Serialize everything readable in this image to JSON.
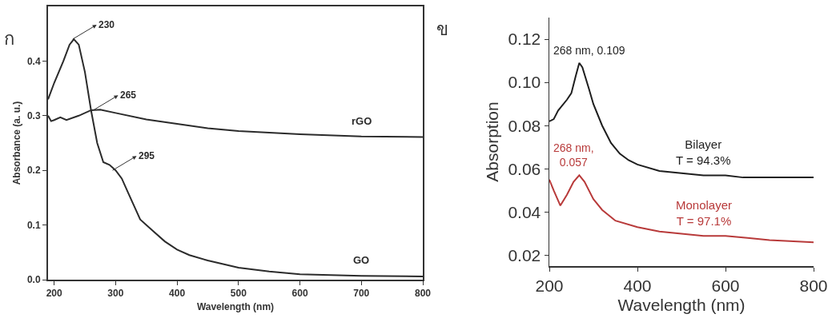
{
  "chart_data": [
    {
      "type": "line",
      "title": "ก",
      "xlabel": "Wavelength (nm)",
      "ylabel": "Absorbance (a. u.)",
      "xlim": [
        190,
        800
      ],
      "ylim": [
        0,
        0.5
      ],
      "xticks": [
        200,
        300,
        400,
        500,
        600,
        700,
        800
      ],
      "yticks": [
        {
          "value": 0,
          "label": "0.0"
        },
        0.1,
        0.2,
        0.3,
        0.4
      ],
      "grid": false,
      "legend": false,
      "series": [
        {
          "name": "rGO",
          "color": "#2b2b2b",
          "x": [
            190,
            195,
            200,
            210,
            220,
            240,
            260,
            275,
            300,
            350,
            400,
            450,
            500,
            600,
            700,
            800
          ],
          "values": [
            0.3,
            0.29,
            0.292,
            0.297,
            0.292,
            0.3,
            0.31,
            0.311,
            0.305,
            0.293,
            0.285,
            0.277,
            0.272,
            0.266,
            0.262,
            0.261
          ]
        },
        {
          "name": "GO",
          "color": "#2b2b2b",
          "x": [
            190,
            200,
            215,
            225,
            232,
            240,
            250,
            260,
            270,
            280,
            290,
            300,
            310,
            320,
            330,
            340,
            360,
            380,
            400,
            420,
            450,
            500,
            550,
            600,
            700,
            800
          ],
          "values": [
            0.33,
            0.36,
            0.4,
            0.43,
            0.44,
            0.43,
            0.38,
            0.31,
            0.25,
            0.215,
            0.21,
            0.2,
            0.185,
            0.16,
            0.135,
            0.11,
            0.09,
            0.07,
            0.055,
            0.045,
            0.035,
            0.022,
            0.015,
            0.01,
            0.007,
            0.006
          ]
        }
      ],
      "annotations": [
        {
          "text": "230",
          "x": 230,
          "y": 0.44
        },
        {
          "text": "265",
          "x": 265,
          "y": 0.311
        },
        {
          "text": "295",
          "x": 295,
          "y": 0.2
        }
      ]
    },
    {
      "type": "line",
      "title": "ข",
      "xlabel": "Wavelength (nm)",
      "ylabel": "Absorption",
      "xlim": [
        200,
        800
      ],
      "ylim": [
        0.015,
        0.13
      ],
      "xticks": [
        200,
        400,
        600,
        800
      ],
      "yticks": [
        0.02,
        0.04,
        0.06,
        0.08,
        {
          "value": 0.1,
          "label": "0.10"
        },
        0.12
      ],
      "grid": false,
      "legend": false,
      "series": [
        {
          "name": "Bilayer\nT = 94.3%",
          "color": "#1e1e1e",
          "x": [
            200,
            210,
            220,
            240,
            250,
            260,
            268,
            275,
            290,
            300,
            320,
            340,
            360,
            380,
            400,
            450,
            500,
            550,
            600,
            640,
            700,
            800
          ],
          "values": [
            0.082,
            0.083,
            0.087,
            0.092,
            0.095,
            0.103,
            0.109,
            0.107,
            0.097,
            0.09,
            0.08,
            0.072,
            0.067,
            0.064,
            0.062,
            0.059,
            0.058,
            0.057,
            0.057,
            0.056,
            0.056,
            0.056
          ]
        },
        {
          "name": "Monolayer\nT = 97.1%",
          "color": "#b83a3a",
          "x": [
            200,
            210,
            225,
            240,
            255,
            268,
            280,
            300,
            320,
            350,
            400,
            450,
            500,
            550,
            600,
            650,
            700,
            800
          ],
          "values": [
            0.055,
            0.05,
            0.043,
            0.048,
            0.054,
            0.057,
            0.054,
            0.046,
            0.041,
            0.036,
            0.033,
            0.031,
            0.03,
            0.029,
            0.029,
            0.028,
            0.027,
            0.026
          ]
        }
      ],
      "annotations": [
        {
          "text": "268 nm, 0.109",
          "x": 268,
          "y": 0.109
        },
        {
          "text": "268 nm,\n0.057",
          "x": 268,
          "y": 0.057
        }
      ]
    }
  ]
}
